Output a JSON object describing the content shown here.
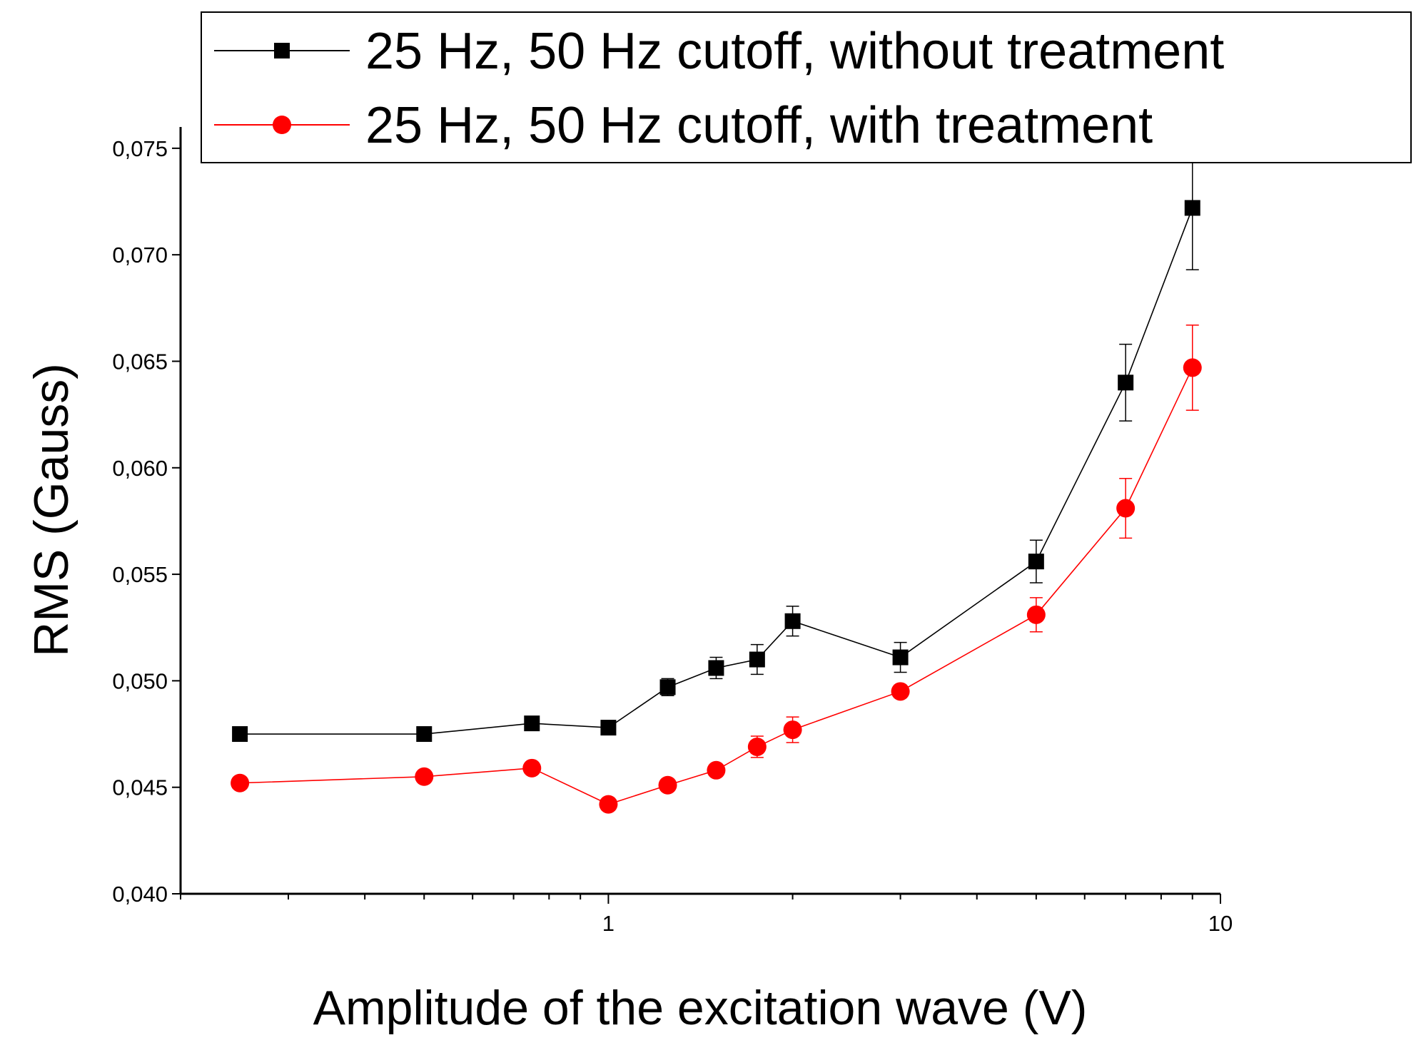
{
  "chart_data": {
    "type": "line",
    "title": "",
    "xlabel": "Amplitude of the excitation wave (V)",
    "ylabel": "RMS (Gauss)",
    "x_scale": "log",
    "xlim": [
      0.2,
      10
    ],
    "ylim": [
      0.04,
      0.076
    ],
    "x_ticks": [
      {
        "value": 1,
        "label": "1"
      },
      {
        "value": 10,
        "label": "10"
      }
    ],
    "y_ticks": [
      {
        "value": 0.04,
        "label": "0,040"
      },
      {
        "value": 0.045,
        "label": "0,045"
      },
      {
        "value": 0.05,
        "label": "0,050"
      },
      {
        "value": 0.055,
        "label": "0,055"
      },
      {
        "value": 0.06,
        "label": "0,060"
      },
      {
        "value": 0.065,
        "label": "0,065"
      },
      {
        "value": 0.07,
        "label": "0,070"
      },
      {
        "value": 0.075,
        "label": "0,075"
      }
    ],
    "legend_position": "top",
    "series": [
      {
        "name": "25 Hz, 50 Hz cutoff, without treatment",
        "color": "#000000",
        "marker": "square",
        "x": [
          0.25,
          0.5,
          0.75,
          1.0,
          1.25,
          1.5,
          1.75,
          2.0,
          3.0,
          5.0,
          7.0,
          9.0
        ],
        "y": [
          0.0475,
          0.0475,
          0.048,
          0.0478,
          0.0497,
          0.0506,
          0.051,
          0.0528,
          0.0511,
          0.0556,
          0.064,
          0.0722
        ],
        "err": [
          0.0,
          0.0,
          0.0,
          0.0,
          0.0004,
          0.0005,
          0.0007,
          0.0007,
          0.0007,
          0.001,
          0.0018,
          0.0029
        ]
      },
      {
        "name": "25 Hz, 50 Hz cutoff, with treatment",
        "color": "#ff0000",
        "marker": "circle",
        "x": [
          0.25,
          0.5,
          0.75,
          1.0,
          1.25,
          1.5,
          1.75,
          2.0,
          3.0,
          5.0,
          7.0,
          9.0
        ],
        "y": [
          0.0452,
          0.0455,
          0.0459,
          0.0442,
          0.0451,
          0.0458,
          0.0469,
          0.0477,
          0.0495,
          0.0531,
          0.0581,
          0.0647
        ],
        "err": [
          0.0,
          0.0,
          0.0,
          0.0,
          0.0,
          0.0,
          0.0005,
          0.0006,
          0.0003,
          0.0008,
          0.0014,
          0.002
        ]
      }
    ]
  }
}
